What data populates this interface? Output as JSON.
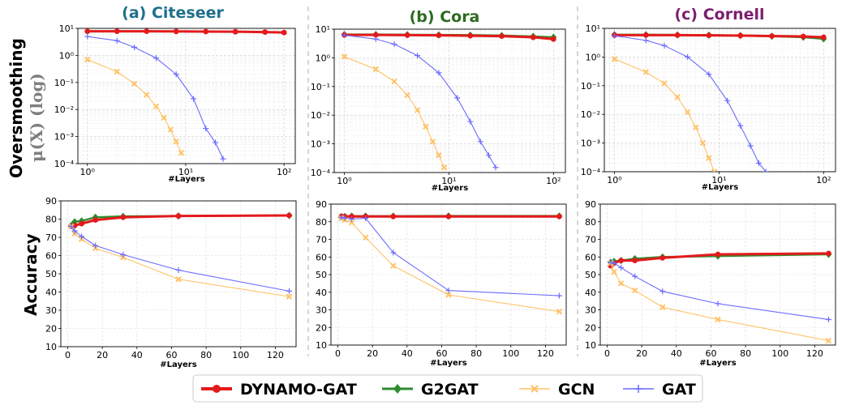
{
  "colors": {
    "DYNAMO-GAT": "#e31a1c",
    "G2GAT": "#2e8b2e",
    "GCN": "#ffc266",
    "GAT": "#6b6bff"
  },
  "row_labels": {
    "smoothing_top": "Oversmoothing",
    "smoothing_bottom": "μ(X) (log)",
    "accuracy": "Accuracy"
  },
  "legend": {
    "items": [
      {
        "name": "DYNAMO-GAT"
      },
      {
        "name": "G2GAT"
      },
      {
        "name": "GCN"
      },
      {
        "name": "GAT"
      }
    ]
  },
  "chart_data": [
    {
      "type": "line",
      "title": "(a) Citeseer",
      "title_color": "#1f6f8b",
      "xlabel": "#Layers",
      "ylabel": "",
      "xscale": "log",
      "yscale": "log",
      "xlim": [
        0.8,
        130
      ],
      "ylim": [
        0.0001,
        10
      ],
      "grid": true,
      "xticks": [
        1,
        10,
        100
      ],
      "xtick_labels": [
        "10⁰",
        "10¹",
        "10²"
      ],
      "yticks": [
        0.0001,
        0.001,
        0.01,
        0.1,
        1,
        10
      ],
      "ytick_labels": [
        "10⁻⁴",
        "10⁻³",
        "10⁻²",
        "10⁻¹",
        "10⁰",
        "10¹"
      ],
      "series": [
        {
          "name": "DYNAMO-GAT",
          "x": [
            1,
            2,
            4,
            8,
            16,
            32,
            64,
            100
          ],
          "y": [
            7.8,
            7.8,
            7.8,
            7.7,
            7.6,
            7.5,
            7.3,
            7.0
          ]
        },
        {
          "name": "GCN",
          "x": [
            1,
            2,
            3,
            4,
            5,
            6,
            7,
            8,
            9
          ],
          "y": [
            0.7,
            0.25,
            0.09,
            0.035,
            0.013,
            0.005,
            0.0018,
            0.00065,
            0.00025
          ]
        },
        {
          "name": "GAT",
          "x": [
            1,
            2,
            3,
            5,
            8,
            12,
            16,
            20,
            24
          ],
          "y": [
            5.0,
            3.5,
            2.0,
            0.8,
            0.2,
            0.025,
            0.002,
            0.0006,
            0.00015
          ]
        }
      ]
    },
    {
      "type": "line",
      "title": "(b) Cora",
      "title_color": "#2d6a1f",
      "xlabel": "#Layers",
      "ylabel": "",
      "xscale": "log",
      "yscale": "log",
      "xlim": [
        0.8,
        130
      ],
      "ylim": [
        0.0001,
        10
      ],
      "grid": true,
      "xticks": [
        1,
        10,
        100
      ],
      "xtick_labels": [
        "10⁰",
        "10¹",
        "10²"
      ],
      "yticks": [
        0.0001,
        0.001,
        0.01,
        0.1,
        1,
        10
      ],
      "ytick_labels": [
        "10⁻⁴",
        "10⁻³",
        "10⁻²",
        "10⁻¹",
        "10⁰",
        "10¹"
      ],
      "series": [
        {
          "name": "G2GAT",
          "x": [
            1,
            2,
            4,
            8,
            16,
            32,
            64,
            100
          ],
          "y": [
            6.5,
            6.5,
            6.4,
            6.3,
            6.2,
            6.0,
            5.6,
            5.2
          ]
        },
        {
          "name": "DYNAMO-GAT",
          "x": [
            1,
            2,
            4,
            8,
            16,
            32,
            64,
            100
          ],
          "y": [
            6.3,
            6.3,
            6.2,
            6.1,
            5.9,
            5.7,
            5.2,
            4.5
          ]
        },
        {
          "name": "GCN",
          "x": [
            1,
            2,
            3,
            4,
            5,
            6,
            7,
            8,
            9
          ],
          "y": [
            1.1,
            0.4,
            0.15,
            0.05,
            0.015,
            0.004,
            0.0012,
            0.0004,
            0.00015
          ]
        },
        {
          "name": "GAT",
          "x": [
            1,
            2,
            3,
            5,
            8,
            12,
            16,
            20,
            24,
            28
          ],
          "y": [
            6.2,
            4.5,
            3.0,
            1.2,
            0.3,
            0.04,
            0.006,
            0.0012,
            0.0004,
            0.00015
          ]
        }
      ]
    },
    {
      "type": "line",
      "title": "(c) Cornell",
      "title_color": "#7b1f6f",
      "xlabel": "#Layers",
      "ylabel": "",
      "xscale": "log",
      "yscale": "log",
      "xlim": [
        0.8,
        130
      ],
      "ylim": [
        0.0001,
        10
      ],
      "grid": true,
      "xticks": [
        1,
        10,
        100
      ],
      "xtick_labels": [
        "10⁰",
        "10¹",
        "10²"
      ],
      "yticks": [
        0.0001,
        0.001,
        0.01,
        0.1,
        1,
        10
      ],
      "ytick_labels": [
        "10⁻⁴",
        "10⁻³",
        "10⁻²",
        "10⁻¹",
        "10⁰",
        "10¹"
      ],
      "series": [
        {
          "name": "G2GAT",
          "x": [
            1,
            2,
            4,
            8,
            16,
            32,
            64,
            100
          ],
          "y": [
            6.0,
            6.0,
            5.9,
            5.8,
            5.6,
            5.3,
            4.9,
            4.3
          ]
        },
        {
          "name": "DYNAMO-GAT",
          "x": [
            1,
            2,
            4,
            8,
            16,
            32,
            64,
            100
          ],
          "y": [
            5.8,
            5.8,
            5.8,
            5.7,
            5.6,
            5.4,
            5.2,
            4.9
          ]
        },
        {
          "name": "GCN",
          "x": [
            1,
            2,
            3,
            4,
            5,
            6,
            7,
            8,
            9
          ],
          "y": [
            0.85,
            0.3,
            0.12,
            0.04,
            0.012,
            0.0035,
            0.001,
            0.0003,
            0.0001
          ]
        },
        {
          "name": "GAT",
          "x": [
            1,
            2,
            3,
            5,
            8,
            12,
            16,
            20,
            24,
            28
          ],
          "y": [
            5.5,
            3.8,
            2.5,
            1.0,
            0.25,
            0.03,
            0.004,
            0.0008,
            0.0002,
            0.0001
          ]
        }
      ]
    },
    {
      "type": "line",
      "title": "",
      "xlabel": "#Layers",
      "ylabel": "Accuracy",
      "xscale": "linear",
      "yscale": "linear",
      "xlim": [
        -4,
        132
      ],
      "ylim": [
        10,
        90
      ],
      "grid": true,
      "xticks": [
        0,
        20,
        40,
        60,
        80,
        100,
        120
      ],
      "yticks": [
        10,
        20,
        30,
        40,
        50,
        60,
        70,
        80,
        90
      ],
      "series": [
        {
          "name": "G2GAT",
          "x": [
            2,
            4,
            8,
            16,
            32,
            64,
            128
          ],
          "y": [
            76.5,
            78.5,
            79.0,
            81.0,
            81.5,
            81.7,
            82.0
          ]
        },
        {
          "name": "DYNAMO-GAT",
          "x": [
            2,
            4,
            8,
            16,
            32,
            64,
            128
          ],
          "y": [
            76.0,
            76.5,
            77.5,
            79.5,
            81.0,
            81.7,
            82.0
          ]
        },
        {
          "name": "GCN",
          "x": [
            2,
            4,
            8,
            16,
            32,
            64,
            128
          ],
          "y": [
            76.0,
            72.0,
            69.0,
            64.0,
            59.0,
            47.0,
            37.5
          ]
        },
        {
          "name": "GAT",
          "x": [
            2,
            4,
            8,
            16,
            32,
            64,
            128
          ],
          "y": [
            76.0,
            73.5,
            70.5,
            65.5,
            60.5,
            52.0,
            40.5
          ]
        }
      ]
    },
    {
      "type": "line",
      "title": "",
      "xlabel": "#Layers",
      "ylabel": "",
      "xscale": "linear",
      "yscale": "linear",
      "xlim": [
        -4,
        132
      ],
      "ylim": [
        10,
        90
      ],
      "grid": true,
      "xticks": [
        0,
        20,
        40,
        60,
        80,
        100,
        120
      ],
      "yticks": [
        10,
        20,
        30,
        40,
        50,
        60,
        70,
        80,
        90
      ],
      "series": [
        {
          "name": "G2GAT",
          "x": [
            2,
            4,
            8,
            16,
            32,
            64,
            128
          ],
          "y": [
            83.0,
            83.0,
            83.2,
            83.2,
            83.2,
            83.3,
            83.3
          ]
        },
        {
          "name": "DYNAMO-GAT",
          "x": [
            2,
            4,
            8,
            16,
            32,
            64,
            128
          ],
          "y": [
            83.0,
            83.0,
            83.0,
            83.0,
            83.0,
            83.0,
            83.0
          ]
        },
        {
          "name": "GCN",
          "x": [
            2,
            4,
            8,
            16,
            32,
            64,
            128
          ],
          "y": [
            82.0,
            81.0,
            79.5,
            71.0,
            55.0,
            38.5,
            29.0
          ]
        },
        {
          "name": "GAT",
          "x": [
            2,
            4,
            8,
            16,
            32,
            64,
            128
          ],
          "y": [
            82.5,
            82.0,
            81.5,
            82.0,
            62.5,
            41.0,
            38.0
          ]
        }
      ]
    },
    {
      "type": "line",
      "title": "",
      "xlabel": "#Layers",
      "ylabel": "",
      "xscale": "linear",
      "yscale": "linear",
      "xlim": [
        -4,
        132
      ],
      "ylim": [
        10,
        90
      ],
      "grid": true,
      "xticks": [
        0,
        20,
        40,
        60,
        80,
        100,
        120
      ],
      "yticks": [
        10,
        20,
        30,
        40,
        50,
        60,
        70,
        80,
        90
      ],
      "series": [
        {
          "name": "G2GAT",
          "x": [
            2,
            4,
            8,
            16,
            32,
            64,
            128
          ],
          "y": [
            57.0,
            57.5,
            58.0,
            59.0,
            60.0,
            60.5,
            61.5
          ]
        },
        {
          "name": "DYNAMO-GAT",
          "x": [
            2,
            4,
            8,
            16,
            32,
            64,
            128
          ],
          "y": [
            55.0,
            56.5,
            58.0,
            58.0,
            59.5,
            61.5,
            62.0
          ]
        },
        {
          "name": "GCN",
          "x": [
            2,
            4,
            8,
            16,
            32,
            64,
            128
          ],
          "y": [
            56.5,
            51.5,
            45.0,
            41.0,
            31.5,
            24.5,
            12.5
          ]
        },
        {
          "name": "GAT",
          "x": [
            2,
            4,
            8,
            16,
            32,
            64,
            128
          ],
          "y": [
            57.0,
            56.5,
            54.0,
            49.0,
            40.5,
            33.5,
            24.5
          ]
        }
      ]
    }
  ]
}
